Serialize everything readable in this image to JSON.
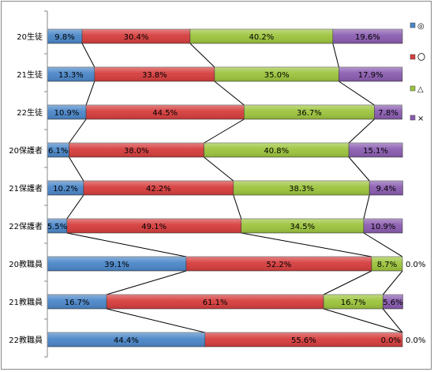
{
  "chart_data": {
    "type": "bar",
    "orientation": "horizontal",
    "stacked": "100%",
    "grid": false,
    "legend_position": "right",
    "xlim": [
      0,
      100
    ],
    "categories": [
      "20生徒",
      "21生徒",
      "22生徒",
      "20保護者",
      "21保護者",
      "22保護者",
      "20教職員",
      "21教職員",
      "22教職員"
    ],
    "series": [
      {
        "name": "◎",
        "color": "#4a86c8",
        "values": [
          9.8,
          13.3,
          10.9,
          6.1,
          10.2,
          5.5,
          39.1,
          16.7,
          44.4
        ],
        "labels": [
          "9.8%",
          "13.3%",
          "10.9%",
          "6.1%",
          "10.2%",
          "5.5%",
          "39.1%",
          "16.7%",
          "44.4%"
        ]
      },
      {
        "name": "〇",
        "color": "#d63c3c",
        "values": [
          30.4,
          33.8,
          44.5,
          38.0,
          42.2,
          49.1,
          52.2,
          61.1,
          55.6
        ],
        "labels": [
          "30.4%",
          "33.8%",
          "44.5%",
          "38.0%",
          "42.2%",
          "49.1%",
          "52.2%",
          "61.1%",
          "55.6%"
        ]
      },
      {
        "name": "△",
        "color": "#9cc43c",
        "values": [
          40.2,
          35.0,
          36.7,
          40.8,
          38.3,
          34.5,
          8.7,
          16.7,
          0.0
        ],
        "labels": [
          "40.2%",
          "35.0%",
          "36.7%",
          "40.8%",
          "38.3%",
          "34.5%",
          "8.7%",
          "16.7%",
          "0.0%"
        ]
      },
      {
        "name": "×",
        "color": "#8a5cb0",
        "values": [
          19.6,
          17.9,
          7.8,
          15.1,
          9.4,
          10.9,
          0.0,
          5.6,
          0.0
        ],
        "labels": [
          "19.6%",
          "17.9%",
          "7.8%",
          "15.1%",
          "9.4%",
          "10.9%",
          "0.0%",
          "5.6%",
          "0.0%"
        ]
      }
    ]
  }
}
